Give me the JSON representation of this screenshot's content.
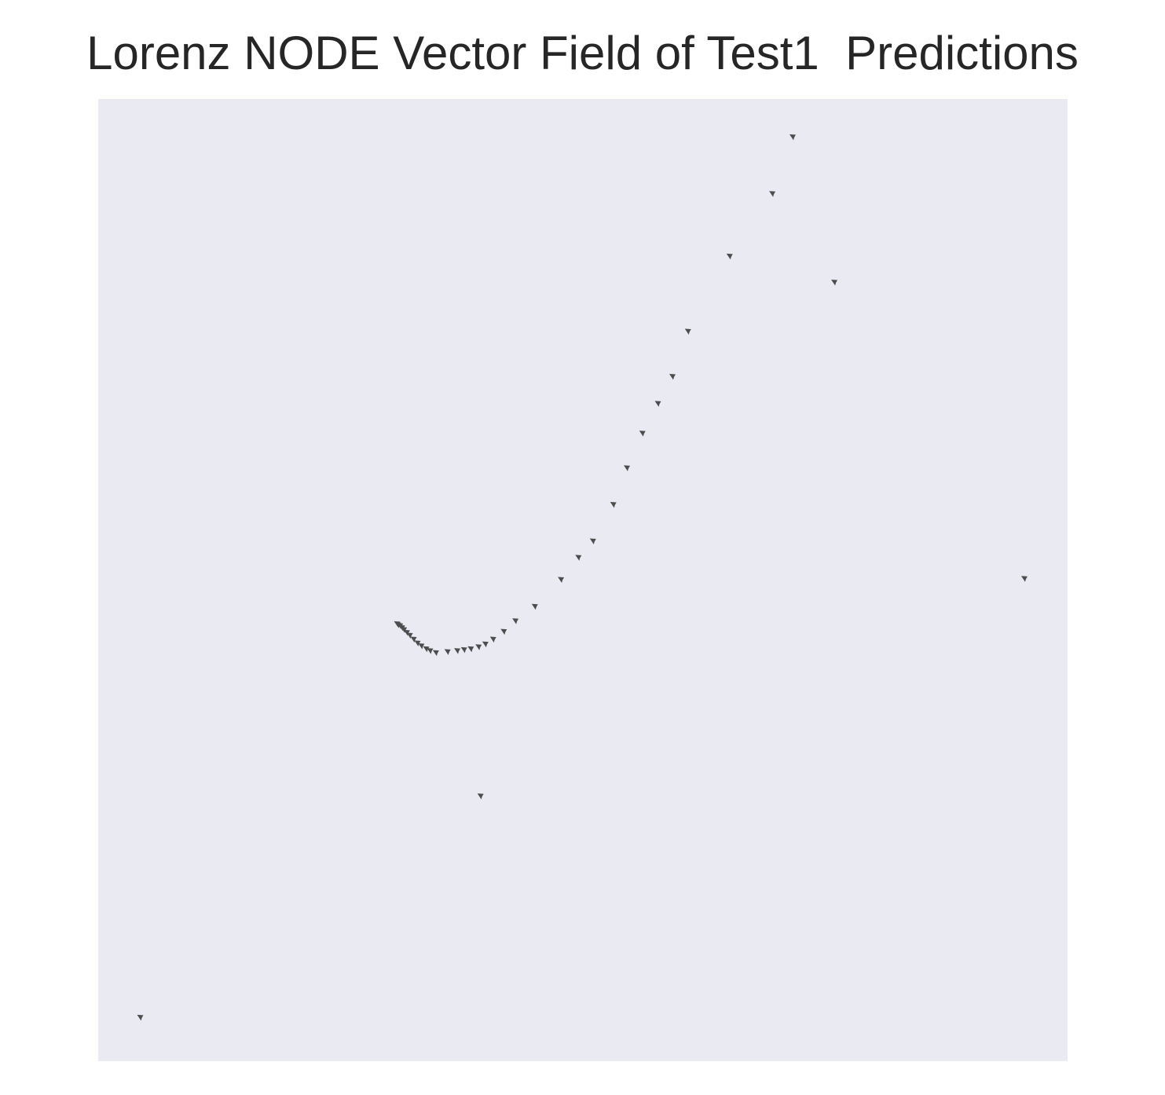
{
  "chart_data": {
    "type": "scatter",
    "title": "Lorenz NODE Vector Field of Test1  Predictions",
    "xlabel": "",
    "ylabel": "",
    "axes_visible": false,
    "grid": false,
    "background_color": "#eaeaf2",
    "arrow_color": "#4d4d4d",
    "arrow_direction": "up-left",
    "xlim": [
      0,
      1
    ],
    "ylim": [
      0,
      1
    ],
    "series": [
      {
        "points": [
          {
            "x": 0.045,
            "y": 0.045
          },
          {
            "x": 0.396,
            "y": 0.275
          },
          {
            "x": 0.957,
            "y": 0.501
          },
          {
            "x": 0.761,
            "y": 0.809
          },
          {
            "x": 0.718,
            "y": 0.96
          },
          {
            "x": 0.697,
            "y": 0.901
          },
          {
            "x": 0.653,
            "y": 0.836
          },
          {
            "x": 0.61,
            "y": 0.758
          },
          {
            "x": 0.594,
            "y": 0.711
          },
          {
            "x": 0.579,
            "y": 0.683
          },
          {
            "x": 0.563,
            "y": 0.652
          },
          {
            "x": 0.547,
            "y": 0.616
          },
          {
            "x": 0.533,
            "y": 0.578
          },
          {
            "x": 0.512,
            "y": 0.54
          },
          {
            "x": 0.497,
            "y": 0.523
          },
          {
            "x": 0.479,
            "y": 0.5
          },
          {
            "x": 0.452,
            "y": 0.472
          },
          {
            "x": 0.432,
            "y": 0.457
          },
          {
            "x": 0.42,
            "y": 0.446
          },
          {
            "x": 0.409,
            "y": 0.438
          },
          {
            "x": 0.401,
            "y": 0.433
          },
          {
            "x": 0.394,
            "y": 0.43
          },
          {
            "x": 0.386,
            "y": 0.428
          },
          {
            "x": 0.379,
            "y": 0.427
          },
          {
            "x": 0.372,
            "y": 0.426
          },
          {
            "x": 0.362,
            "y": 0.425
          },
          {
            "x": 0.35,
            "y": 0.424
          },
          {
            "x": 0.344,
            "y": 0.426
          },
          {
            "x": 0.34,
            "y": 0.428
          },
          {
            "x": 0.335,
            "y": 0.431
          },
          {
            "x": 0.331,
            "y": 0.434
          },
          {
            "x": 0.327,
            "y": 0.438
          },
          {
            "x": 0.323,
            "y": 0.442
          },
          {
            "x": 0.32,
            "y": 0.445
          },
          {
            "x": 0.317,
            "y": 0.448
          },
          {
            "x": 0.315,
            "y": 0.45
          },
          {
            "x": 0.313,
            "y": 0.452
          },
          {
            "x": 0.311,
            "y": 0.453
          },
          {
            "x": 0.31,
            "y": 0.454
          }
        ]
      }
    ]
  }
}
